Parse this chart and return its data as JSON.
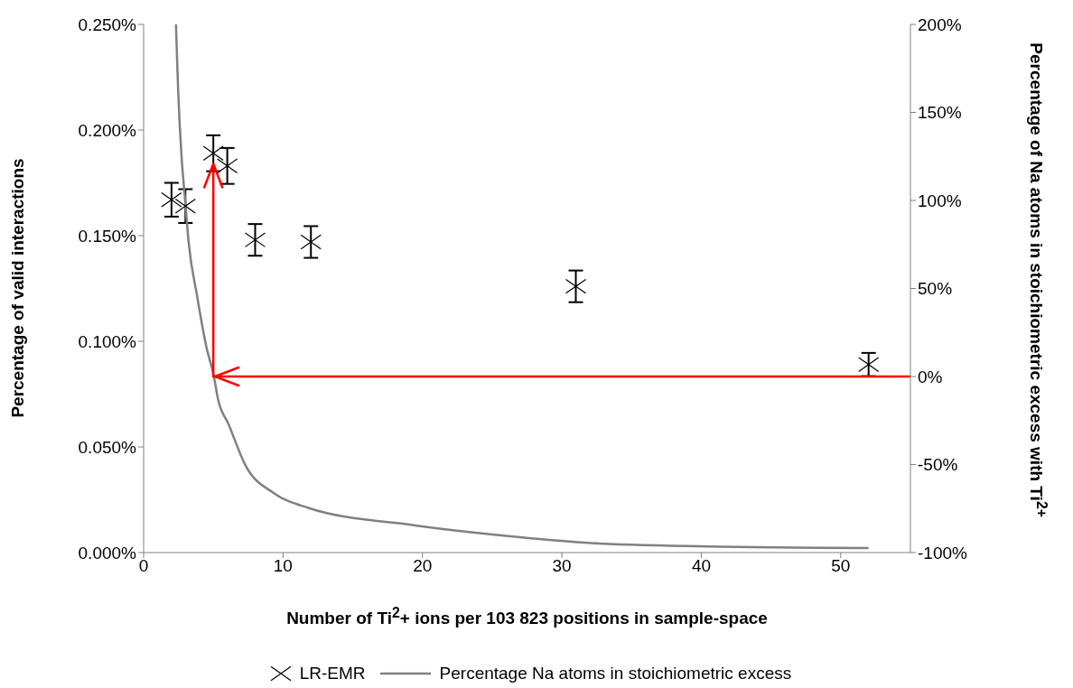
{
  "chart_data": {
    "type": "scatter",
    "xlabel": "Number of Ti$^{2}$+ ions per 103 823 positions in sample-space",
    "ylabel": "Percentage of  valid interactions",
    "y2label": "Percentage of Na atoms in stoichiometric excess with Ti$^{2+}$",
    "x": [
      2,
      3,
      5,
      6,
      8,
      12,
      31,
      52
    ],
    "series": [
      {
        "name": "LR-EMR",
        "color": "#000000",
        "marker": "cross",
        "values": [
          0.167,
          0.164,
          0.189,
          0.183,
          0.148,
          0.147,
          0.126,
          0.089
        ],
        "errors": [
          0.008,
          0.008,
          0.0085,
          0.0085,
          0.0075,
          0.0075,
          0.0075,
          0.0055
        ]
      },
      {
        "name": "Percentage Na atoms in stoichiometric excess",
        "type": "line",
        "axis": "y2",
        "color": "#808080",
        "marker": "none",
        "x": [
          2.32,
          2.47,
          2.73,
          2.97,
          3.22,
          3.83,
          4.47,
          5.04,
          5.34,
          6.09,
          7.34,
          9.3,
          11.8,
          19.6,
          27,
          32.1,
          40.4,
          52
        ],
        "values": [
          200,
          164,
          124,
          101,
          77,
          46,
          18,
          0,
          -13,
          -27,
          -51,
          -66,
          -74.6,
          -84.7,
          -91.3,
          -94.6,
          -96.5,
          -97.4
        ]
      }
    ],
    "xlim": [
      0,
      55
    ],
    "xticks": [
      0,
      10,
      20,
      30,
      40,
      50
    ],
    "ylim": [
      0,
      0.25
    ],
    "yticks": [
      {
        "value": 0,
        "label": "0.000%"
      },
      {
        "value": 0.05,
        "label": "0.050%"
      },
      {
        "value": 0.1,
        "label": "0.100%"
      },
      {
        "value": 0.15,
        "label": "0.150%"
      },
      {
        "value": 0.2,
        "label": "0.200%"
      },
      {
        "value": 0.25,
        "label": "0.250%"
      }
    ],
    "y2lim": [
      -100,
      200
    ],
    "y2ticks": [
      {
        "value": -100,
        "label": "-100%"
      },
      {
        "value": -50,
        "label": "-50%"
      },
      {
        "value": 0,
        "label": "0%"
      },
      {
        "value": 50,
        "label": "50%"
      },
      {
        "value": 100,
        "label": "100%"
      },
      {
        "value": 150,
        "label": "150%"
      },
      {
        "value": 200,
        "label": "200%"
      }
    ],
    "ref_lines": [
      {
        "axis": "y2",
        "value": 0,
        "color": "#ff0000"
      }
    ],
    "grid": false,
    "legend": "bottom"
  }
}
